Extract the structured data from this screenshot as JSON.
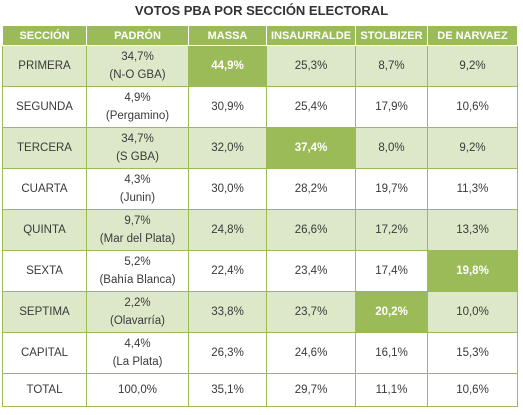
{
  "title": "VOTOS PBA POR SECCIÓN ELECTORAL",
  "headers": [
    "SECCIÓN",
    "PADRÓN",
    "MASSA",
    "INSAURRALDE",
    "STOLBIZER",
    "DE NARVAEZ"
  ],
  "rows": [
    {
      "seccion": "PRIMERA",
      "padron": "34,7%",
      "padron_sub": "(N-O GBA)",
      "massa": "44,9%",
      "insaurralde": "25,3%",
      "stolbizer": "8,7%",
      "de_narvaez": "9,2%"
    },
    {
      "seccion": "SEGUNDA",
      "padron": "4,9%",
      "padron_sub": "(Pergamino)",
      "massa": "30,9%",
      "insaurralde": "25,4%",
      "stolbizer": "17,9%",
      "de_narvaez": "10,6%"
    },
    {
      "seccion": "TERCERA",
      "padron": "34,7%",
      "padron_sub": "(S GBA)",
      "massa": "32,0%",
      "insaurralde": "37,4%",
      "stolbizer": "8,0%",
      "de_narvaez": "9,2%"
    },
    {
      "seccion": "CUARTA",
      "padron": "4,3%",
      "padron_sub": "(Junin)",
      "massa": "30,0%",
      "insaurralde": "28,2%",
      "stolbizer": "19,7%",
      "de_narvaez": "11,3%"
    },
    {
      "seccion": "QUINTA",
      "padron": "9,7%",
      "padron_sub": "(Mar del Plata)",
      "massa": "24,8%",
      "insaurralde": "26,6%",
      "stolbizer": "17,2%",
      "de_narvaez": "13,3%"
    },
    {
      "seccion": "SEXTA",
      "padron": "5,2%",
      "padron_sub": "(Bahía Blanca)",
      "massa": "22,4%",
      "insaurralde": "23,4%",
      "stolbizer": "17,4%",
      "de_narvaez": "19,8%"
    },
    {
      "seccion": "SEPTIMA",
      "padron": "2,2%",
      "padron_sub": "(Olavarría)",
      "massa": "33,8%",
      "insaurralde": "23,7%",
      "stolbizer": "20,2%",
      "de_narvaez": "10,0%"
    },
    {
      "seccion": "CAPITAL",
      "padron": "4,4%",
      "padron_sub": "(La Plata)",
      "massa": "26,3%",
      "insaurralde": "24,6%",
      "stolbizer": "16,1%",
      "de_narvaez": "15,3%"
    }
  ],
  "total": {
    "seccion": "TOTAL",
    "padron": "100,0%",
    "massa": "35,1%",
    "insaurralde": "29,7%",
    "stolbizer": "11,1%",
    "de_narvaez": "10,6%"
  },
  "highlight_color": "#9bbb59",
  "band_color": "#dde8c9"
}
